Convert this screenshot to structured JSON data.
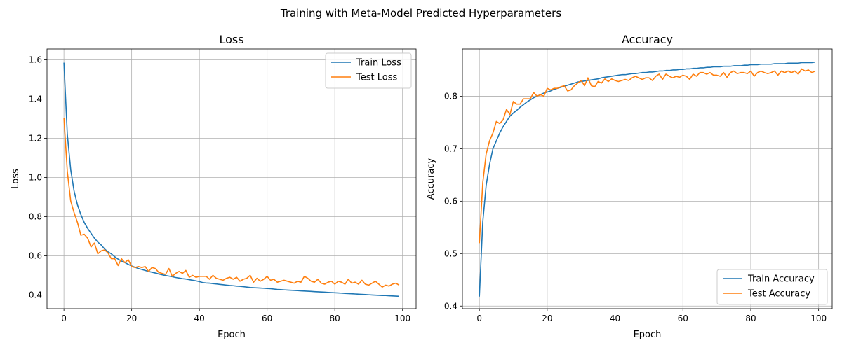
{
  "figure": {
    "suptitle": "Training with Meta-Model Predicted Hyperparameters"
  },
  "colors": {
    "train": "#1f77b4",
    "test": "#ff7f0e",
    "grid": "#b0b0b0"
  },
  "chart_data": [
    {
      "type": "line",
      "title": "Loss",
      "xlabel": "Epoch",
      "ylabel": "Loss",
      "xlim": [
        -5,
        104
      ],
      "ylim": [
        0.33,
        1.655
      ],
      "xticks": [
        0,
        20,
        40,
        60,
        80,
        100
      ],
      "yticks": [
        0.4,
        0.6,
        0.8,
        1.0,
        1.2,
        1.4,
        1.6
      ],
      "ytick_labels": [
        "0.4",
        "0.6",
        "0.8",
        "1.0",
        "1.2",
        "1.4",
        "1.6"
      ],
      "grid": true,
      "legend_position": "upper right",
      "x": [
        0,
        1,
        2,
        3,
        4,
        5,
        6,
        7,
        8,
        9,
        10,
        11,
        12,
        13,
        14,
        15,
        16,
        17,
        18,
        19,
        20,
        21,
        22,
        23,
        24,
        25,
        26,
        27,
        28,
        29,
        30,
        31,
        32,
        33,
        34,
        35,
        36,
        37,
        38,
        39,
        40,
        41,
        42,
        43,
        44,
        45,
        46,
        47,
        48,
        49,
        50,
        51,
        52,
        53,
        54,
        55,
        56,
        57,
        58,
        59,
        60,
        61,
        62,
        63,
        64,
        65,
        66,
        67,
        68,
        69,
        70,
        71,
        72,
        73,
        74,
        75,
        76,
        77,
        78,
        79,
        80,
        81,
        82,
        83,
        84,
        85,
        86,
        87,
        88,
        89,
        90,
        91,
        92,
        93,
        94,
        95,
        96,
        97,
        98,
        99
      ],
      "series": [
        {
          "name": "Train Loss",
          "color_key": "train",
          "values": [
            1.585,
            1.22,
            1.04,
            0.93,
            0.86,
            0.81,
            0.77,
            0.74,
            0.715,
            0.69,
            0.67,
            0.655,
            0.635,
            0.62,
            0.61,
            0.595,
            0.583,
            0.573,
            0.565,
            0.556,
            0.548,
            0.541,
            0.535,
            0.53,
            0.525,
            0.52,
            0.516,
            0.512,
            0.507,
            0.503,
            0.499,
            0.496,
            0.493,
            0.489,
            0.486,
            0.483,
            0.481,
            0.478,
            0.475,
            0.472,
            0.468,
            0.463,
            0.461,
            0.46,
            0.458,
            0.456,
            0.454,
            0.452,
            0.45,
            0.448,
            0.447,
            0.445,
            0.444,
            0.442,
            0.44,
            0.438,
            0.437,
            0.436,
            0.435,
            0.434,
            0.433,
            0.432,
            0.43,
            0.428,
            0.427,
            0.426,
            0.425,
            0.424,
            0.423,
            0.422,
            0.421,
            0.42,
            0.419,
            0.418,
            0.417,
            0.416,
            0.415,
            0.414,
            0.413,
            0.412,
            0.411,
            0.41,
            0.409,
            0.408,
            0.407,
            0.406,
            0.405,
            0.404,
            0.403,
            0.402,
            0.401,
            0.4,
            0.399,
            0.398,
            0.397,
            0.397,
            0.396,
            0.395,
            0.394,
            0.393
          ]
        },
        {
          "name": "Test Loss",
          "color_key": "test",
          "values": [
            1.305,
            1.03,
            0.88,
            0.82,
            0.77,
            0.705,
            0.71,
            0.69,
            0.645,
            0.665,
            0.61,
            0.625,
            0.63,
            0.615,
            0.585,
            0.585,
            0.55,
            0.585,
            0.565,
            0.58,
            0.545,
            0.54,
            0.545,
            0.54,
            0.545,
            0.52,
            0.54,
            0.535,
            0.515,
            0.51,
            0.505,
            0.535,
            0.495,
            0.51,
            0.52,
            0.51,
            0.525,
            0.49,
            0.5,
            0.49,
            0.495,
            0.495,
            0.495,
            0.48,
            0.5,
            0.485,
            0.48,
            0.475,
            0.485,
            0.49,
            0.48,
            0.49,
            0.47,
            0.48,
            0.485,
            0.5,
            0.465,
            0.485,
            0.47,
            0.48,
            0.495,
            0.475,
            0.48,
            0.465,
            0.47,
            0.475,
            0.47,
            0.465,
            0.46,
            0.47,
            0.465,
            0.495,
            0.485,
            0.47,
            0.465,
            0.48,
            0.46,
            0.455,
            0.465,
            0.47,
            0.455,
            0.47,
            0.465,
            0.455,
            0.48,
            0.46,
            0.465,
            0.455,
            0.475,
            0.455,
            0.45,
            0.46,
            0.47,
            0.455,
            0.44,
            0.45,
            0.445,
            0.455,
            0.46,
            0.45
          ]
        }
      ]
    },
    {
      "type": "line",
      "title": "Accuracy",
      "xlabel": "Epoch",
      "ylabel": "Accuracy",
      "xlim": [
        -5,
        104
      ],
      "ylim": [
        0.395,
        0.89
      ],
      "xticks": [
        0,
        20,
        40,
        60,
        80,
        100
      ],
      "yticks": [
        0.4,
        0.5,
        0.6,
        0.7,
        0.8
      ],
      "ytick_labels": [
        "0.4",
        "0.5",
        "0.6",
        "0.7",
        "0.8"
      ],
      "grid": true,
      "legend_position": "lower right",
      "x": [
        0,
        1,
        2,
        3,
        4,
        5,
        6,
        7,
        8,
        9,
        10,
        11,
        12,
        13,
        14,
        15,
        16,
        17,
        18,
        19,
        20,
        21,
        22,
        23,
        24,
        25,
        26,
        27,
        28,
        29,
        30,
        31,
        32,
        33,
        34,
        35,
        36,
        37,
        38,
        39,
        40,
        41,
        42,
        43,
        44,
        45,
        46,
        47,
        48,
        49,
        50,
        51,
        52,
        53,
        54,
        55,
        56,
        57,
        58,
        59,
        60,
        61,
        62,
        63,
        64,
        65,
        66,
        67,
        68,
        69,
        70,
        71,
        72,
        73,
        74,
        75,
        76,
        77,
        78,
        79,
        80,
        81,
        82,
        83,
        84,
        85,
        86,
        87,
        88,
        89,
        90,
        91,
        92,
        93,
        94,
        95,
        96,
        97,
        98,
        99
      ],
      "series": [
        {
          "name": "Train Accuracy",
          "color_key": "train",
          "values": [
            0.418,
            0.56,
            0.63,
            0.67,
            0.7,
            0.715,
            0.73,
            0.742,
            0.752,
            0.762,
            0.768,
            0.773,
            0.779,
            0.784,
            0.789,
            0.793,
            0.797,
            0.8,
            0.803,
            0.806,
            0.808,
            0.81,
            0.813,
            0.815,
            0.817,
            0.819,
            0.821,
            0.823,
            0.825,
            0.827,
            0.828,
            0.829,
            0.83,
            0.831,
            0.832,
            0.833,
            0.835,
            0.836,
            0.837,
            0.838,
            0.839,
            0.84,
            0.841,
            0.841,
            0.842,
            0.843,
            0.843,
            0.844,
            0.845,
            0.845,
            0.846,
            0.846,
            0.847,
            0.848,
            0.848,
            0.849,
            0.849,
            0.85,
            0.85,
            0.851,
            0.851,
            0.852,
            0.852,
            0.853,
            0.853,
            0.854,
            0.854,
            0.855,
            0.855,
            0.856,
            0.856,
            0.856,
            0.857,
            0.857,
            0.857,
            0.858,
            0.858,
            0.858,
            0.859,
            0.859,
            0.86,
            0.86,
            0.86,
            0.861,
            0.861,
            0.861,
            0.861,
            0.862,
            0.862,
            0.862,
            0.862,
            0.863,
            0.863,
            0.863,
            0.863,
            0.864,
            0.864,
            0.864,
            0.864,
            0.865
          ]
        },
        {
          "name": "Test Accuracy",
          "color_key": "test",
          "values": [
            0.52,
            0.635,
            0.69,
            0.715,
            0.73,
            0.752,
            0.748,
            0.755,
            0.775,
            0.765,
            0.79,
            0.785,
            0.785,
            0.795,
            0.795,
            0.795,
            0.807,
            0.8,
            0.803,
            0.8,
            0.815,
            0.812,
            0.815,
            0.815,
            0.818,
            0.82,
            0.81,
            0.812,
            0.82,
            0.825,
            0.83,
            0.82,
            0.835,
            0.82,
            0.818,
            0.828,
            0.825,
            0.833,
            0.828,
            0.833,
            0.83,
            0.828,
            0.83,
            0.832,
            0.83,
            0.835,
            0.838,
            0.835,
            0.832,
            0.835,
            0.835,
            0.83,
            0.838,
            0.842,
            0.832,
            0.842,
            0.838,
            0.835,
            0.838,
            0.836,
            0.84,
            0.838,
            0.832,
            0.842,
            0.838,
            0.845,
            0.845,
            0.842,
            0.845,
            0.84,
            0.84,
            0.838,
            0.845,
            0.836,
            0.845,
            0.848,
            0.843,
            0.845,
            0.845,
            0.843,
            0.848,
            0.838,
            0.845,
            0.848,
            0.845,
            0.843,
            0.845,
            0.848,
            0.84,
            0.848,
            0.845,
            0.848,
            0.845,
            0.848,
            0.842,
            0.852,
            0.848,
            0.85,
            0.845,
            0.848
          ]
        }
      ]
    }
  ]
}
